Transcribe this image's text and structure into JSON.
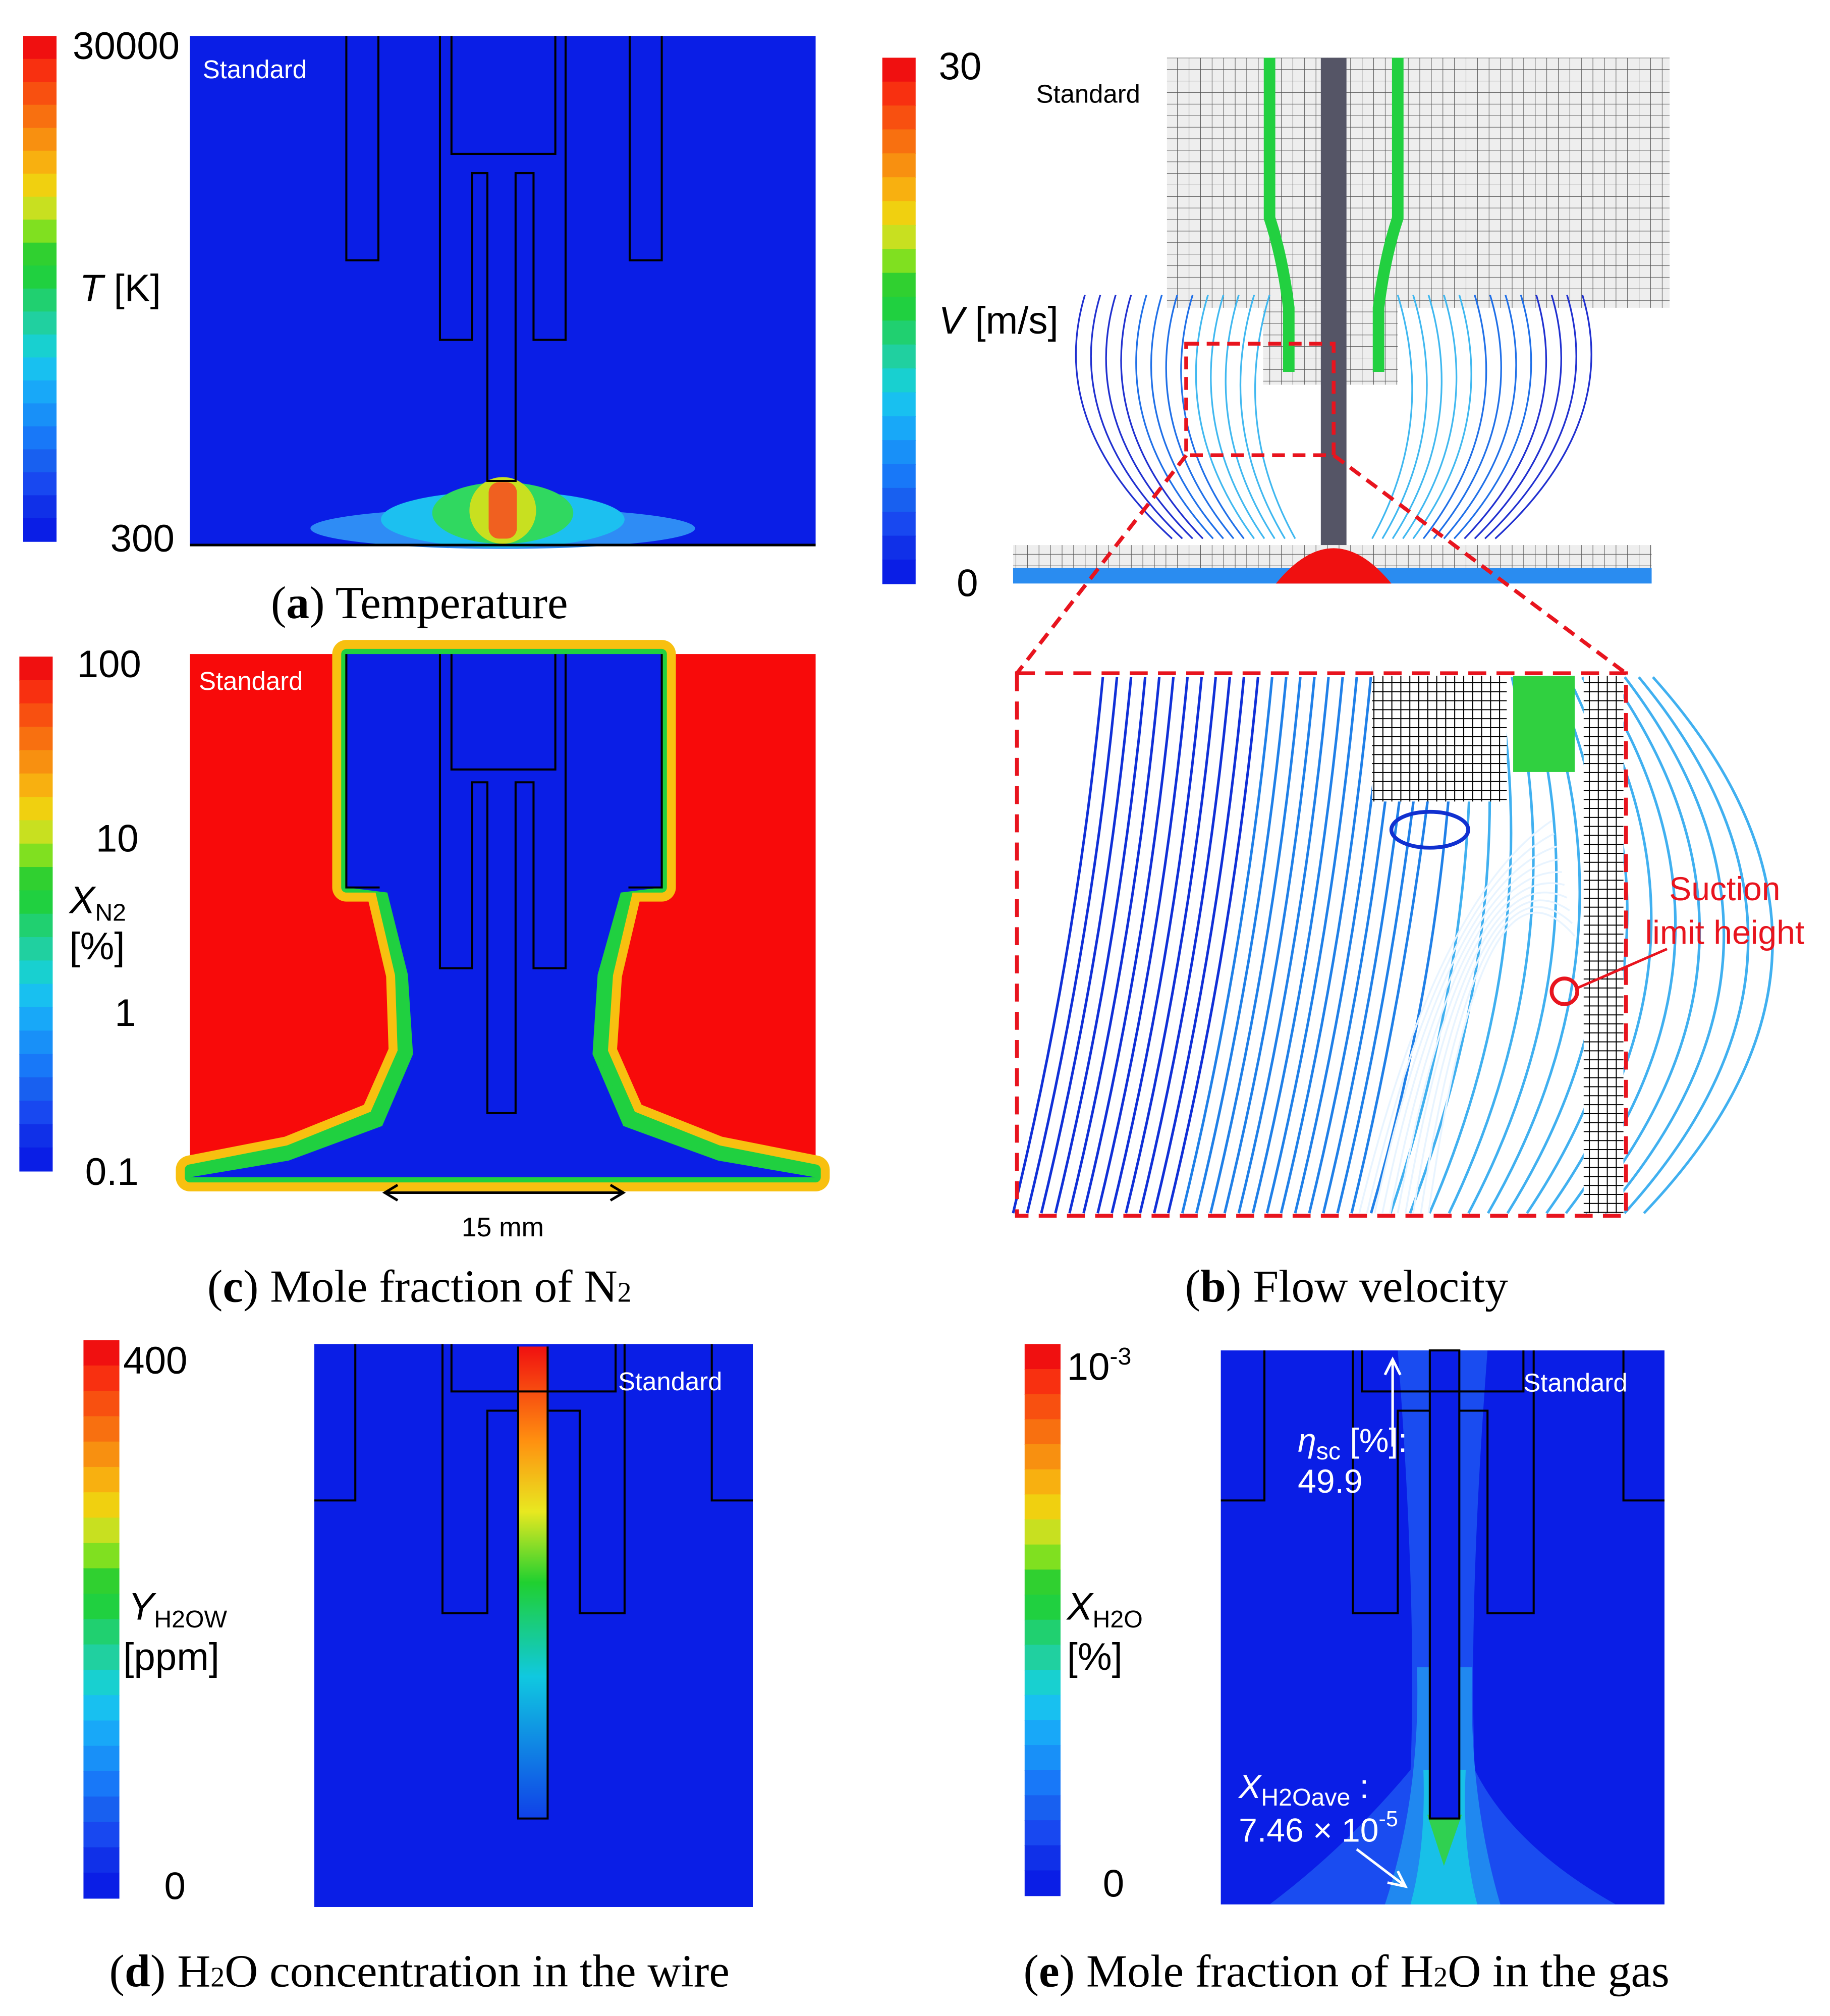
{
  "panels": [
    {
      "id": "a",
      "legend_label": "Standard",
      "colorbar": {
        "ticks": [
          "30000",
          "300"
        ],
        "symbol": "T",
        "unit": "[K]"
      },
      "caption": [
        "(",
        "a",
        ") Temperature"
      ]
    },
    {
      "id": "b",
      "legend_label": "Standard",
      "colorbar": {
        "ticks": [
          "30",
          "0"
        ],
        "symbol": "V",
        "unit": "[m/s]"
      },
      "annotation": [
        "Suction",
        "limit height"
      ],
      "caption": [
        "(",
        "b",
        ") Flow velocity"
      ]
    },
    {
      "id": "c",
      "legend_label": "Standard",
      "colorbar": {
        "ticks": [
          "100",
          "10",
          "1",
          "0.1"
        ],
        "symbol": "X",
        "subscript": "N2",
        "unit": "[%]"
      },
      "scale_label": "15 mm",
      "caption": [
        "(",
        "c",
        ") Mole fraction of N",
        "2"
      ]
    },
    {
      "id": "d",
      "legend_label": "Standard",
      "colorbar": {
        "ticks": [
          "400",
          "0"
        ],
        "symbol": "Y",
        "subscript": "H2OW",
        "unit": "[ppm]"
      },
      "caption": [
        "(",
        "d",
        ") H",
        "2",
        "O concentration in the wire"
      ]
    },
    {
      "id": "e",
      "legend_label": "Standard",
      "colorbar": {
        "ticks": [
          "10",
          "0"
        ],
        "top_tick_exponent": "-3",
        "symbol": "X",
        "subscript": "H2O",
        "unit": "[%]"
      },
      "annotations": {
        "efficiency": {
          "symbol": "η",
          "subscript": "sc",
          "unit": "[%]:",
          "value": "49.9"
        },
        "average": {
          "symbol": "X",
          "subscript": "H2Oave",
          "separator": ":",
          "value": "7.46 × 10",
          "exponent": "-5"
        }
      },
      "caption": [
        "(",
        "e",
        ") Mole fraction of H",
        "2",
        "O in the gas"
      ]
    }
  ]
}
